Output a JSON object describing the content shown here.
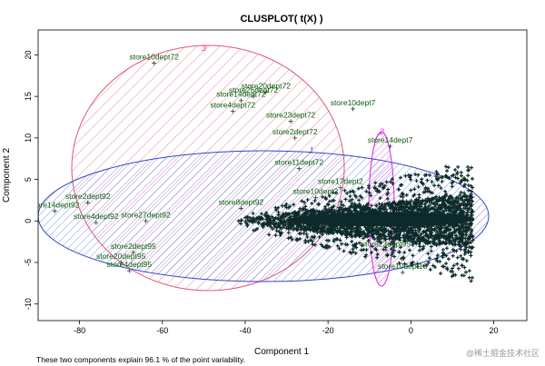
{
  "chart_data": {
    "type": "scatter",
    "title": "CLUSPLOT( t(X) )",
    "xlabel": "Component 1",
    "ylabel": "Component 2",
    "xlim": [
      -90,
      28
    ],
    "ylim": [
      -12,
      23
    ],
    "xticks": [
      -80,
      -60,
      -40,
      -20,
      0,
      20
    ],
    "yticks": [
      -10,
      -5,
      0,
      5,
      10,
      15,
      20
    ],
    "footnote": "These two components explain 96.1 % of the point variability.",
    "clusters": [
      {
        "id": "1",
        "color": "#3346c8",
        "center": [
          -35.5,
          0.6
        ],
        "label_pos": [
          -24,
          8.2
        ]
      },
      {
        "id": "2",
        "color": "#dd22dd",
        "center": [
          -7,
          5.5
        ],
        "label_pos": [
          -7,
          10.4
        ]
      },
      {
        "id": "3",
        "color": "#dd3355",
        "center": [
          -50,
          5
        ],
        "label_pos": [
          -50,
          20.5
        ]
      }
    ],
    "dense_region": {
      "x_range": [
        -42,
        15
      ],
      "y_range": [
        -5.5,
        7
      ]
    },
    "labeled_points": [
      {
        "label": "store10dept72",
        "x": -62,
        "y": 19
      },
      {
        "label": "store20dept72",
        "x": -35,
        "y": 15.5
      },
      {
        "label": "store26dept72",
        "x": -38,
        "y": 15
      },
      {
        "label": "store14dept72",
        "x": -41,
        "y": 14.5
      },
      {
        "label": "store4dept72",
        "x": -43,
        "y": 13.2
      },
      {
        "label": "store10dept7",
        "x": -14,
        "y": 13.5
      },
      {
        "label": "store23dept72",
        "x": -29,
        "y": 12
      },
      {
        "label": "store2dept72",
        "x": -28,
        "y": 10
      },
      {
        "label": "store11dept72",
        "x": -27,
        "y": 6.3
      },
      {
        "label": "store10dept2",
        "x": -23,
        "y": 2.8
      },
      {
        "label": "store17dept2",
        "x": -17,
        "y": 4
      },
      {
        "label": "store14dept92",
        "x": -86,
        "y": 1.2
      },
      {
        "label": "store2dept92",
        "x": -78,
        "y": 2.2
      },
      {
        "label": "store4dept92",
        "x": -76,
        "y": -0.2
      },
      {
        "label": "store27dept92",
        "x": -64,
        "y": 0
      },
      {
        "label": "store20dept95",
        "x": -70,
        "y": -5
      },
      {
        "label": "store4dept95",
        "x": -68,
        "y": -6
      },
      {
        "label": "store2dept95",
        "x": -67,
        "y": -3.8
      },
      {
        "label": "store23dept95",
        "x": -6,
        "y": -3.5
      },
      {
        "label": "store8dept92",
        "x": -41,
        "y": 1.5
      },
      {
        "label": "store10dept16",
        "x": -2,
        "y": -6.2
      },
      {
        "label": "store14dept7",
        "x": -5,
        "y": 9
      }
    ]
  }
}
